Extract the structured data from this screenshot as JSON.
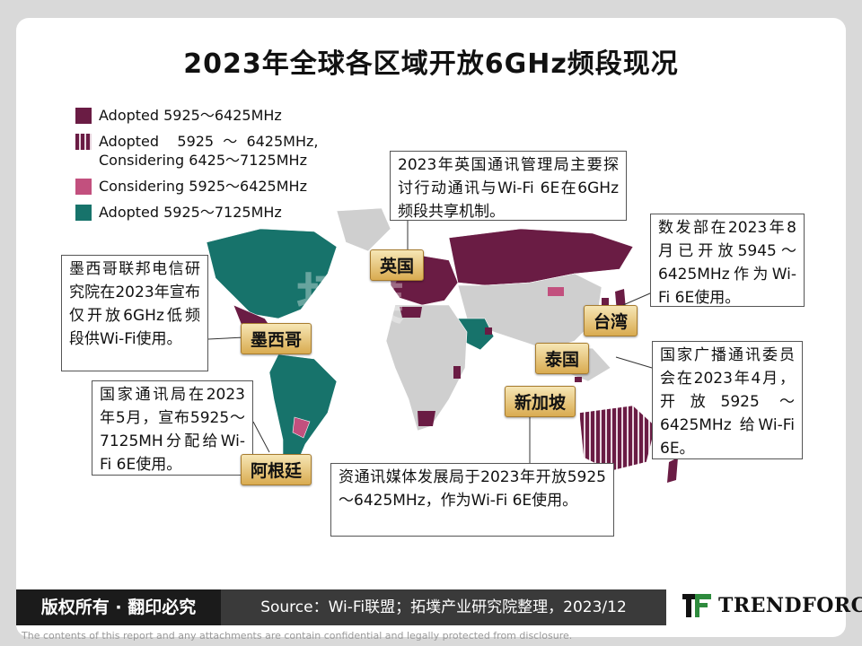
{
  "title": "2023年全球各区域开放6GHz频段现况",
  "legend": [
    {
      "label": "Adopted 5925～6425MHz",
      "color": "#6a1c44",
      "pattern": "solid"
    },
    {
      "label": "Adopted 5925 ～ 6425MHz,\nConsidering 6425～7125MHz",
      "color": "#6a1c44",
      "pattern": "stripes"
    },
    {
      "label": "Considering 5925～6425MHz",
      "color": "#c2507e",
      "pattern": "solid"
    },
    {
      "label": "Adopted 5925～7125MHz",
      "color": "#17736b",
      "pattern": "solid"
    }
  ],
  "callouts": {
    "uk": "2023年英国通讯管理局主要探讨行动通讯与Wi-Fi 6E在6GHz频段共享机制。",
    "taiwan": "数发部在2023年8月已开放5945～6425MHz作为Wi-Fi 6E使用。",
    "mexico": "墨西哥联邦电信研究院在2023年宣布仅开放6GHz低频段供Wi-Fi使用。",
    "thailand": "国家广播通讯委员会在2023年4月，开放5925 ～ 6425MHz 给Wi-Fi 6E。",
    "argentina": "国家通讯局在2023年5月，宣布5925～7125MH分配给Wi-Fi 6E使用。",
    "singapore": "资通讯媒体发展局于2023年开放5925～6425MHz，作为Wi-Fi 6E使用。"
  },
  "tags": {
    "uk": "英国",
    "taiwan": "台湾",
    "mexico": "墨西哥",
    "thailand": "泰国",
    "singapore": "新加坡",
    "argentina": "阿根廷"
  },
  "watermark": "拓墣",
  "footer": {
    "copyright": "版权所有 · 翻印必究",
    "source": "Source：Wi-Fi联盟；拓墣产业研究院整理，2023/12",
    "logo": "TRENDFORCE",
    "disclaimer": "The contents of this report and any attachments are contain confidential and legally protected from disclosure."
  }
}
